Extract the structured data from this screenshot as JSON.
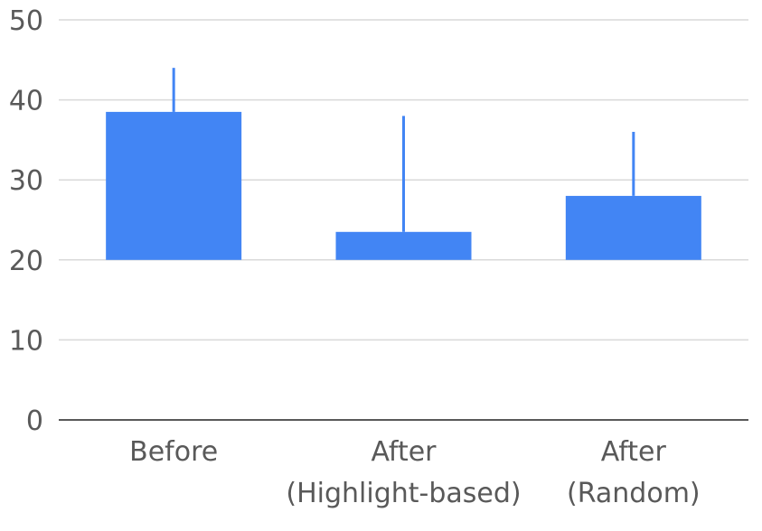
{
  "chart_data": {
    "type": "bar",
    "categories": [
      [
        "Before"
      ],
      [
        "After",
        "(Highlight-based)"
      ],
      [
        "After",
        "(Random)"
      ]
    ],
    "bars": [
      {
        "low": 20,
        "high": 38.5,
        "error_top": 44
      },
      {
        "low": 20,
        "high": 23.5,
        "error_top": 38
      },
      {
        "low": 20,
        "high": 28,
        "error_top": 36
      }
    ],
    "ylim": [
      0,
      50
    ],
    "yticks": [
      0,
      10,
      20,
      30,
      40,
      50
    ],
    "grid": true,
    "title": "",
    "xlabel": "",
    "ylabel": "",
    "bar_color": "#4285f4"
  }
}
